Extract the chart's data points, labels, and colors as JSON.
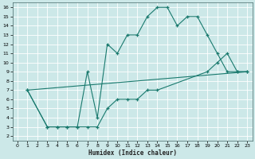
{
  "title": "",
  "xlabel": "Humidex (Indice chaleur)",
  "background_color": "#cce8e8",
  "grid_color": "#ffffff",
  "line_color": "#1a7a6e",
  "xlim": [
    -0.5,
    23.5
  ],
  "ylim": [
    1.5,
    16.5
  ],
  "xticks": [
    0,
    1,
    2,
    3,
    4,
    5,
    6,
    7,
    8,
    9,
    10,
    11,
    12,
    13,
    14,
    15,
    16,
    17,
    18,
    19,
    20,
    21,
    22,
    23
  ],
  "yticks": [
    2,
    3,
    4,
    5,
    6,
    7,
    8,
    9,
    10,
    11,
    12,
    13,
    14,
    15,
    16
  ],
  "line1_x": [
    1,
    3,
    4,
    5,
    6,
    7,
    8,
    9,
    10,
    11,
    12,
    13,
    14,
    15,
    16,
    17,
    18,
    19,
    20,
    21,
    22,
    23
  ],
  "line1_y": [
    7,
    3,
    3,
    3,
    3,
    9,
    4,
    12,
    11,
    13,
    13,
    15,
    16,
    16,
    14,
    15,
    15,
    13,
    11,
    9,
    9,
    9
  ],
  "line2_x": [
    1,
    3,
    4,
    5,
    6,
    7,
    8,
    9,
    10,
    11,
    12,
    13,
    14,
    19,
    20,
    21,
    22,
    23
  ],
  "line2_y": [
    7,
    3,
    3,
    3,
    3,
    3,
    3,
    5,
    6,
    6,
    6,
    7,
    7,
    9,
    10,
    11,
    9,
    9
  ],
  "line3_x": [
    1,
    23
  ],
  "line3_y": [
    7,
    9
  ]
}
